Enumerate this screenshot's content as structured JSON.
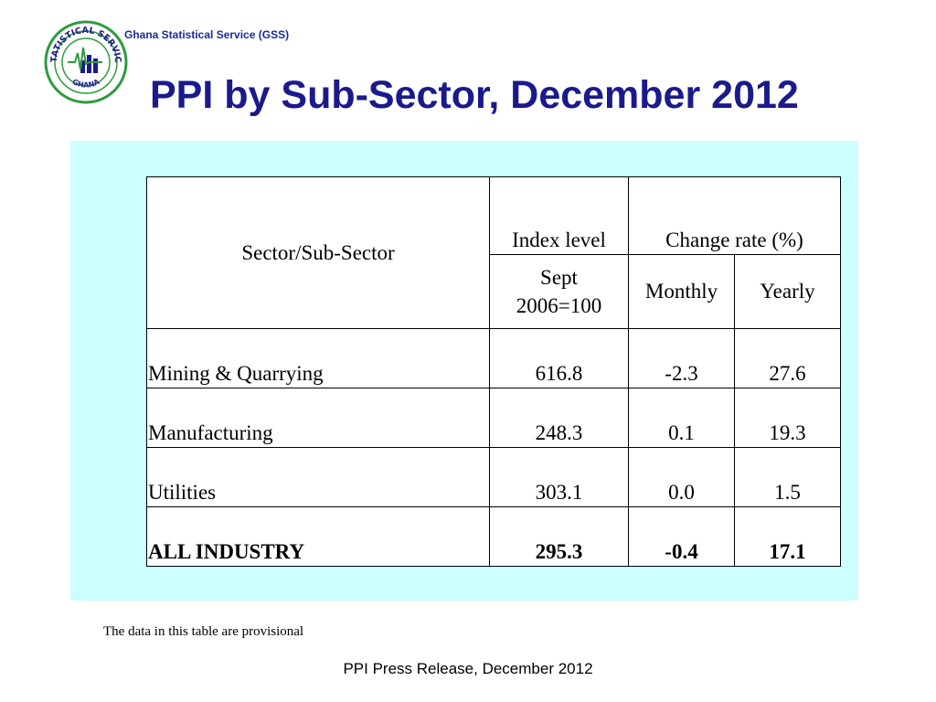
{
  "header": {
    "org_name": "Ghana Statistical Service (GSS)",
    "logo_ring_text_top": "STATISTICAL SERVICE",
    "logo_ring_text_bottom": "GHANA"
  },
  "title": "PPI by Sub-Sector, December 2012",
  "table": {
    "col_sector": "Sector/Sub-Sector",
    "col_index": "Index level",
    "col_change": "Change rate (%)",
    "sub_index_line1": "Sept",
    "sub_index_line2": "2006=100",
    "sub_monthly": "Monthly",
    "sub_yearly": "Yearly",
    "rows": [
      {
        "name": "Mining & Quarrying",
        "index": "616.8",
        "monthly": "-2.3",
        "yearly": "27.6"
      },
      {
        "name": "Manufacturing",
        "index": "248.3",
        "monthly": "0.1",
        "yearly": "19.3"
      },
      {
        "name": "Utilities",
        "index": "303.1",
        "monthly": "0.0",
        "yearly": "1.5"
      },
      {
        "name": "ALL INDUSTRY",
        "index": "295.3",
        "monthly": "-0.4",
        "yearly": "17.1"
      }
    ]
  },
  "footnote": "The data in this table are provisional",
  "footer": "PPI Press Release, December 2012",
  "colors": {
    "title": "#1a1a8c",
    "panel_bg": "#ccffff",
    "logo_green": "#2e9b3e"
  }
}
